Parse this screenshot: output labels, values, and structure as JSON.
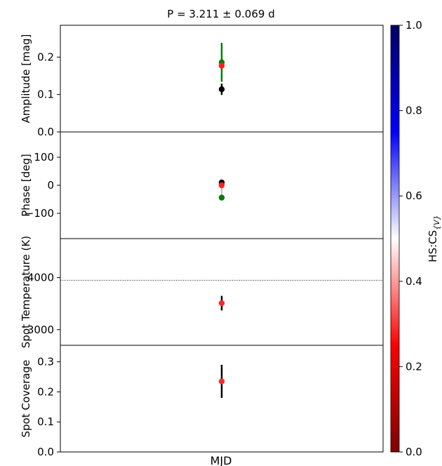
{
  "chart_data": {
    "type": "scatter",
    "title": "P = 3.211 ± 0.069 d",
    "xlabel": "MJD",
    "panels": [
      {
        "id": "amplitude",
        "ylabel": "Amplitude [mag]",
        "ylim": [
          0.0,
          0.285
        ],
        "yticks": [
          0.0,
          0.1,
          0.2
        ],
        "ytick_labels": [
          "0.0",
          "0.1",
          "0.2"
        ],
        "points": [
          {
            "y": 0.186,
            "err": 0.052,
            "color": "#0a7a0a",
            "errcolor": "#0a7a0a"
          },
          {
            "y": 0.177,
            "err": 0.0,
            "color": "#ff2020",
            "errcolor": "#ff2020"
          },
          {
            "y": 0.114,
            "err": 0.015,
            "color": "#000000",
            "errcolor": "#000000"
          }
        ]
      },
      {
        "id": "phase",
        "ylabel": "Phase [deg]",
        "ylim": [
          -190,
          190
        ],
        "yticks": [
          -100,
          0,
          100
        ],
        "ytick_labels": [
          "−100",
          "0",
          "100"
        ],
        "points": [
          {
            "y": 10,
            "err": 0,
            "color": "#000000",
            "errcolor": "#000000"
          },
          {
            "y": 0,
            "err": 0,
            "color": "#ff2020",
            "errcolor": "#ff2020"
          },
          {
            "y": -44,
            "err": 0,
            "color": "#0a7a0a",
            "errcolor": "#0a7a0a"
          }
        ],
        "connector": {
          "from": 10,
          "to": -44,
          "color": "#aaaaaa"
        }
      },
      {
        "id": "temperature",
        "ylabel": "Spot Temperature (K)",
        "ylim": [
          2700,
          4750
        ],
        "yticks": [
          3000,
          4000
        ],
        "ytick_labels": [
          "3000",
          "4000"
        ],
        "hline": 3950,
        "points": [
          {
            "y": 3510,
            "err": 140,
            "color": "#ff2a2a",
            "errcolor": "#000000"
          }
        ]
      },
      {
        "id": "coverage",
        "ylabel": "Spot Coverage",
        "ylim": [
          0.0,
          0.355
        ],
        "yticks": [
          0.0,
          0.1,
          0.2,
          0.3
        ],
        "ytick_labels": [
          "0.0",
          "0.1",
          "0.2",
          "0.3"
        ],
        "points": [
          {
            "y": 0.235,
            "err": 0.055,
            "color": "#ff2a2a",
            "errcolor": "#000000"
          }
        ]
      }
    ],
    "colorbar": {
      "label": "HS:CS",
      "label_sub": "{V}",
      "range": [
        0.0,
        1.0
      ],
      "ticks": [
        0.0,
        0.2,
        0.4,
        0.6,
        0.8,
        1.0
      ],
      "tick_labels": [
        "0.0",
        "0.2",
        "0.4",
        "0.6",
        "0.8",
        "1.0"
      ],
      "colors": [
        "#800000",
        "#ff0000",
        "#ffffff",
        "#0000ff",
        "#000066"
      ]
    }
  }
}
